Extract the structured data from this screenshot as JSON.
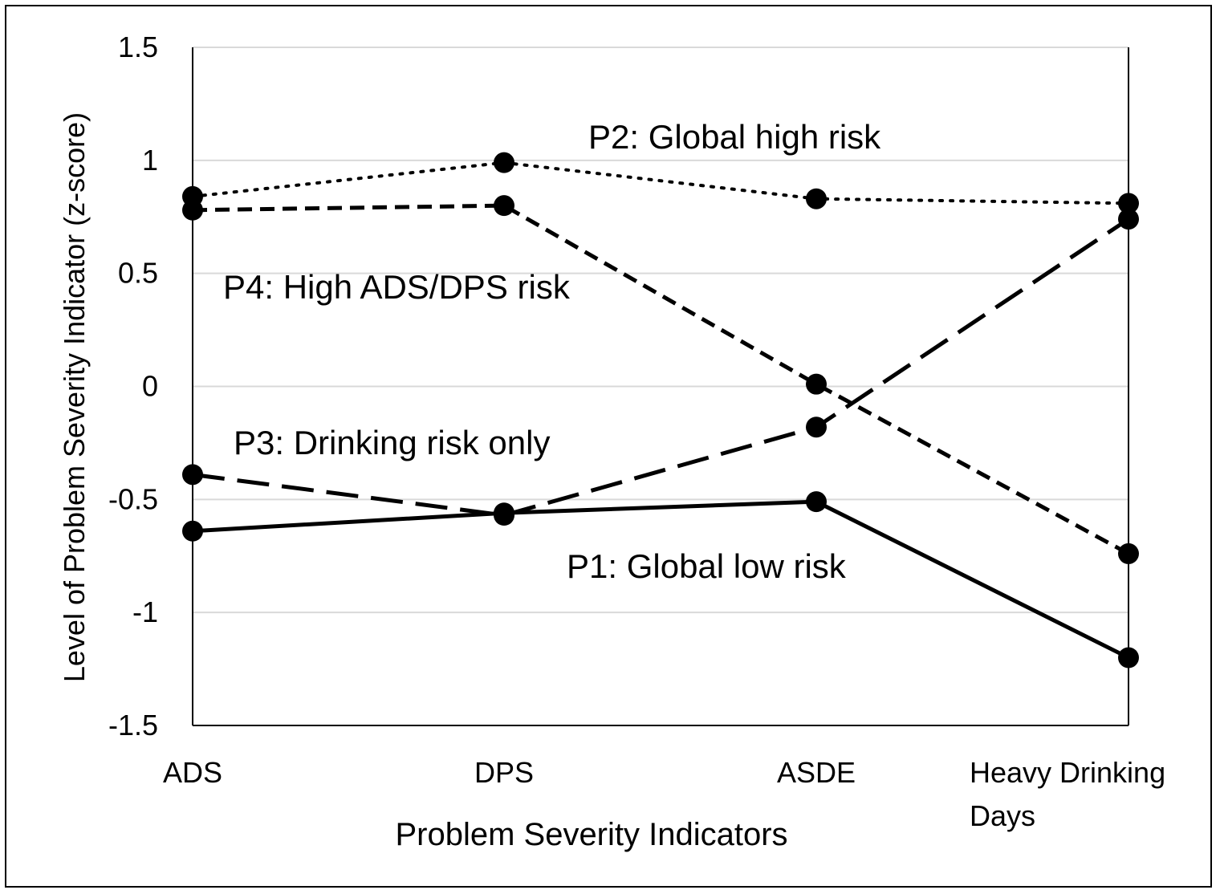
{
  "chart_data": {
    "type": "line",
    "title": "",
    "xlabel": "Problem Severity Indicators",
    "ylabel": "Level of Problem Severity Indicator (z-score)",
    "ylim": [
      -1.5,
      1.5
    ],
    "yticks": [
      "1.5",
      "1",
      "0.5",
      "0",
      "-0.5",
      "-1",
      "-1.5"
    ],
    "grid": true,
    "legend": "none (inline labels)",
    "categories": [
      "ADS",
      "DPS",
      "ASDE",
      "Heavy Drinking Days"
    ],
    "category_label_lines": [
      [
        "ADS"
      ],
      [
        "DPS"
      ],
      [
        "ASDE"
      ],
      [
        "Heavy Drinking",
        "Days"
      ]
    ],
    "series": [
      {
        "name": "P1: Global low risk",
        "style": "solid",
        "values": [
          -0.64,
          -0.56,
          -0.51,
          -1.2
        ]
      },
      {
        "name": "P2: Global high risk",
        "style": "dotted",
        "values": [
          0.84,
          0.99,
          0.83,
          0.81
        ]
      },
      {
        "name": "P3: Drinking risk only",
        "style": "long-dash",
        "values": [
          -0.39,
          -0.57,
          -0.18,
          0.74
        ]
      },
      {
        "name": "P4: High ADS/DPS risk",
        "style": "short-dash",
        "values": [
          0.78,
          0.8,
          0.01,
          -0.74
        ]
      }
    ],
    "colors": {
      "line": "#000000",
      "grid": "#d9d9d9",
      "axis": "#000000"
    }
  }
}
